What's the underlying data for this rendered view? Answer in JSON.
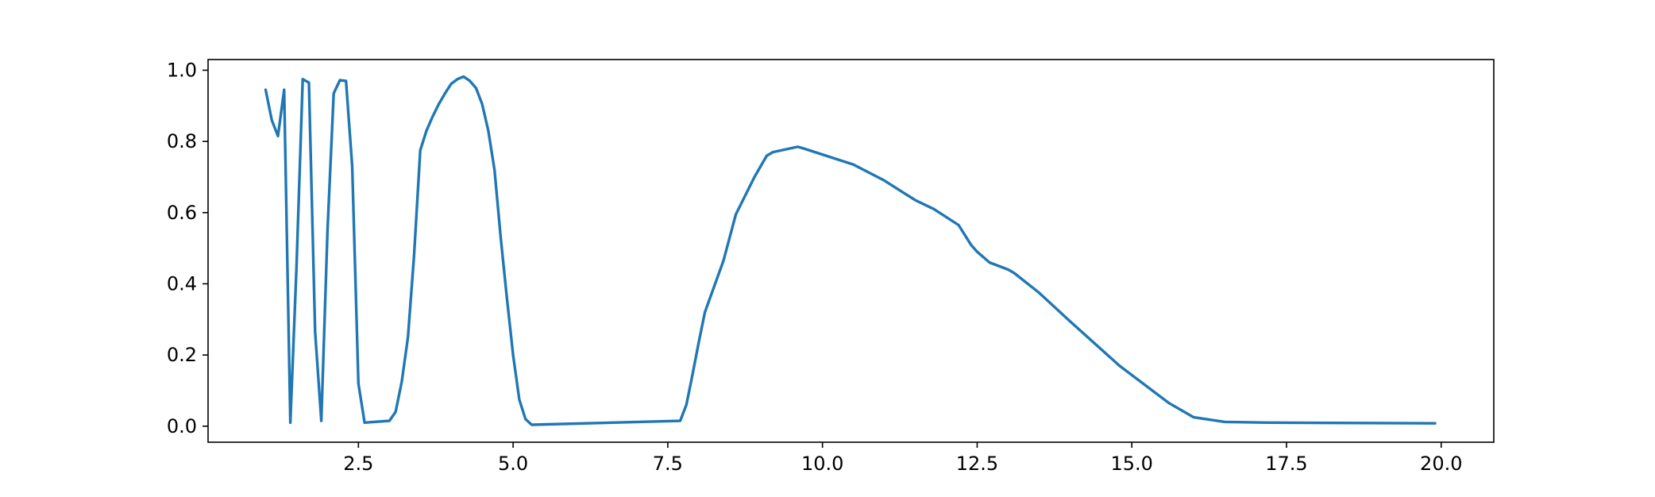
{
  "chart_data": {
    "type": "line",
    "title": "",
    "xlabel": "",
    "ylabel": "",
    "xlim": [
      0.07,
      20.85
    ],
    "ylim": [
      -0.045,
      1.03
    ],
    "grid": false,
    "legend": "none",
    "x_ticks": [
      {
        "value": 2.5,
        "label": "2.5"
      },
      {
        "value": 5.0,
        "label": "5.0"
      },
      {
        "value": 7.5,
        "label": "7.5"
      },
      {
        "value": 10.0,
        "label": "10.0"
      },
      {
        "value": 12.5,
        "label": "12.5"
      },
      {
        "value": 15.0,
        "label": "15.0"
      },
      {
        "value": 17.5,
        "label": "17.5"
      },
      {
        "value": 20.0,
        "label": "20.0"
      }
    ],
    "y_ticks": [
      {
        "value": 0.0,
        "label": "0.0"
      },
      {
        "value": 0.2,
        "label": "0.2"
      },
      {
        "value": 0.4,
        "label": "0.4"
      },
      {
        "value": 0.6,
        "label": "0.6"
      },
      {
        "value": 0.8,
        "label": "0.8"
      },
      {
        "value": 1.0,
        "label": "1.0"
      }
    ],
    "series": [
      {
        "color": "#1f77b4",
        "x": [
          1.0,
          1.1,
          1.2,
          1.3,
          1.4,
          1.5,
          1.6,
          1.7,
          1.8,
          1.9,
          2.0,
          2.1,
          2.2,
          2.3,
          2.4,
          2.5,
          2.6,
          3.0,
          3.1,
          3.2,
          3.3,
          3.4,
          3.5,
          3.6,
          3.7,
          3.8,
          3.9,
          4.0,
          4.1,
          4.2,
          4.3,
          4.4,
          4.5,
          4.6,
          4.7,
          4.8,
          4.9,
          5.0,
          5.1,
          5.2,
          5.3,
          7.7,
          7.8,
          7.9,
          8.0,
          8.1,
          8.4,
          8.6,
          8.9,
          9.1,
          9.2,
          9.6,
          9.7,
          10.5,
          11.0,
          11.5,
          11.8,
          12.2,
          12.4,
          12.5,
          12.6,
          12.7,
          13.0,
          13.1,
          13.5,
          14.0,
          14.8,
          15.6,
          16.0,
          16.5,
          17.2,
          19.9
        ],
        "y": [
          0.945,
          0.86,
          0.815,
          0.945,
          0.01,
          0.45,
          0.975,
          0.965,
          0.265,
          0.015,
          0.55,
          0.935,
          0.972,
          0.97,
          0.73,
          0.12,
          0.01,
          0.015,
          0.04,
          0.125,
          0.25,
          0.48,
          0.775,
          0.83,
          0.87,
          0.905,
          0.935,
          0.962,
          0.975,
          0.982,
          0.97,
          0.95,
          0.905,
          0.83,
          0.72,
          0.53,
          0.36,
          0.2,
          0.075,
          0.02,
          0.004,
          0.015,
          0.06,
          0.145,
          0.235,
          0.32,
          0.465,
          0.595,
          0.7,
          0.76,
          0.77,
          0.785,
          0.78,
          0.735,
          0.69,
          0.635,
          0.61,
          0.565,
          0.51,
          0.49,
          0.475,
          0.46,
          0.44,
          0.43,
          0.375,
          0.295,
          0.17,
          0.065,
          0.025,
          0.012,
          0.01,
          0.008
        ]
      }
    ]
  }
}
